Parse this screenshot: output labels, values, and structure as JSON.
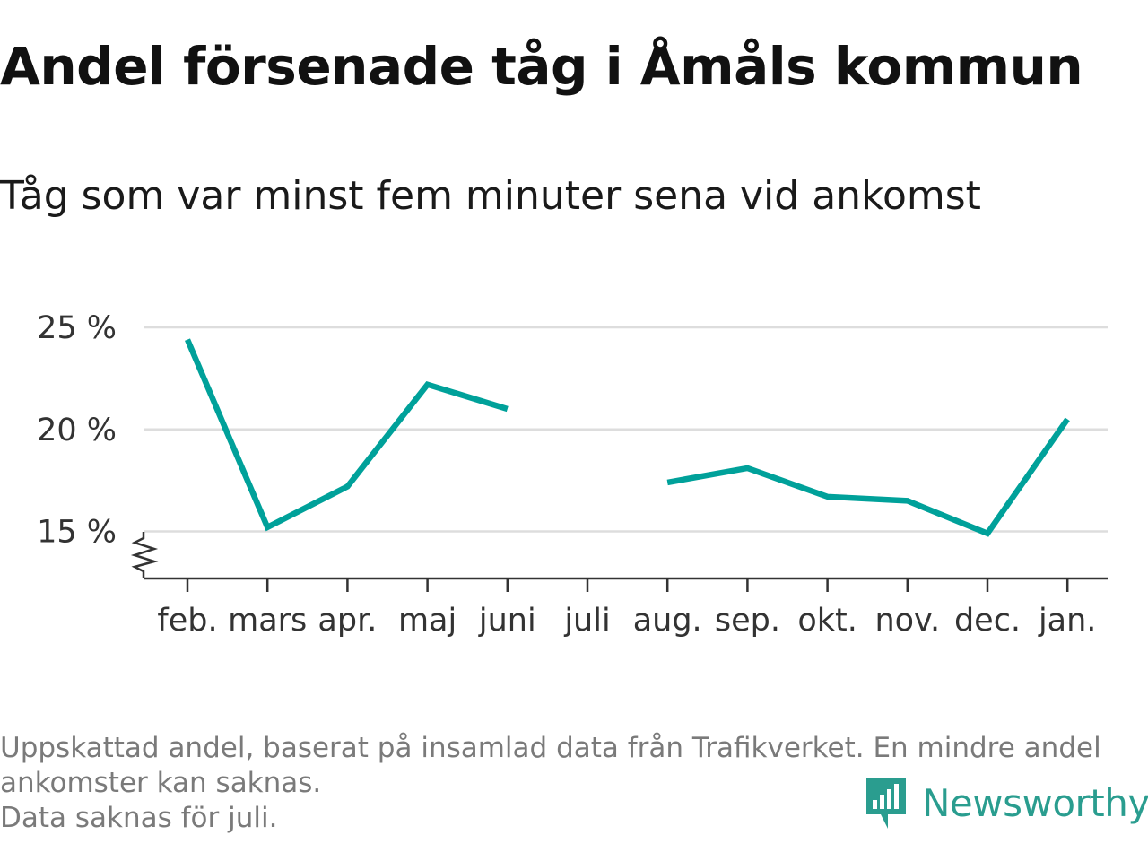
{
  "title": "Andel försenade tåg i Åmåls kommun",
  "subtitle": "Tåg som var minst fem minuter sena vid ankomst",
  "footer": {
    "line1": "Uppskattad andel, baserat på insamlad data från Trafikverket. En mindre andel ankomster kan saknas.",
    "line2": "Data saknas för juli."
  },
  "brand": {
    "name": "Newsworthy",
    "icon": "newsworthy-logo-icon"
  },
  "colors": {
    "line": "#00a19a",
    "grid": "#dddddd",
    "axis": "#333333",
    "text": "#333333",
    "brand": "#2a9d8f"
  },
  "chart_data": {
    "type": "line",
    "categories": [
      "feb.",
      "mars",
      "apr.",
      "maj",
      "juni",
      "juli",
      "aug.",
      "sep.",
      "okt.",
      "nov.",
      "dec.",
      "jan."
    ],
    "series": [
      {
        "values": [
          24.4,
          15.2,
          17.2,
          22.2,
          21.0,
          null,
          17.4,
          18.1,
          16.7,
          16.5,
          14.9,
          20.5
        ]
      }
    ],
    "ylim": [
      12.5,
      25
    ],
    "yticks": [
      15,
      20,
      25
    ],
    "ytick_labels": [
      "15 %",
      "20 %",
      "25 %"
    ],
    "y_axis_break": true,
    "grid": true,
    "legend": "none"
  }
}
